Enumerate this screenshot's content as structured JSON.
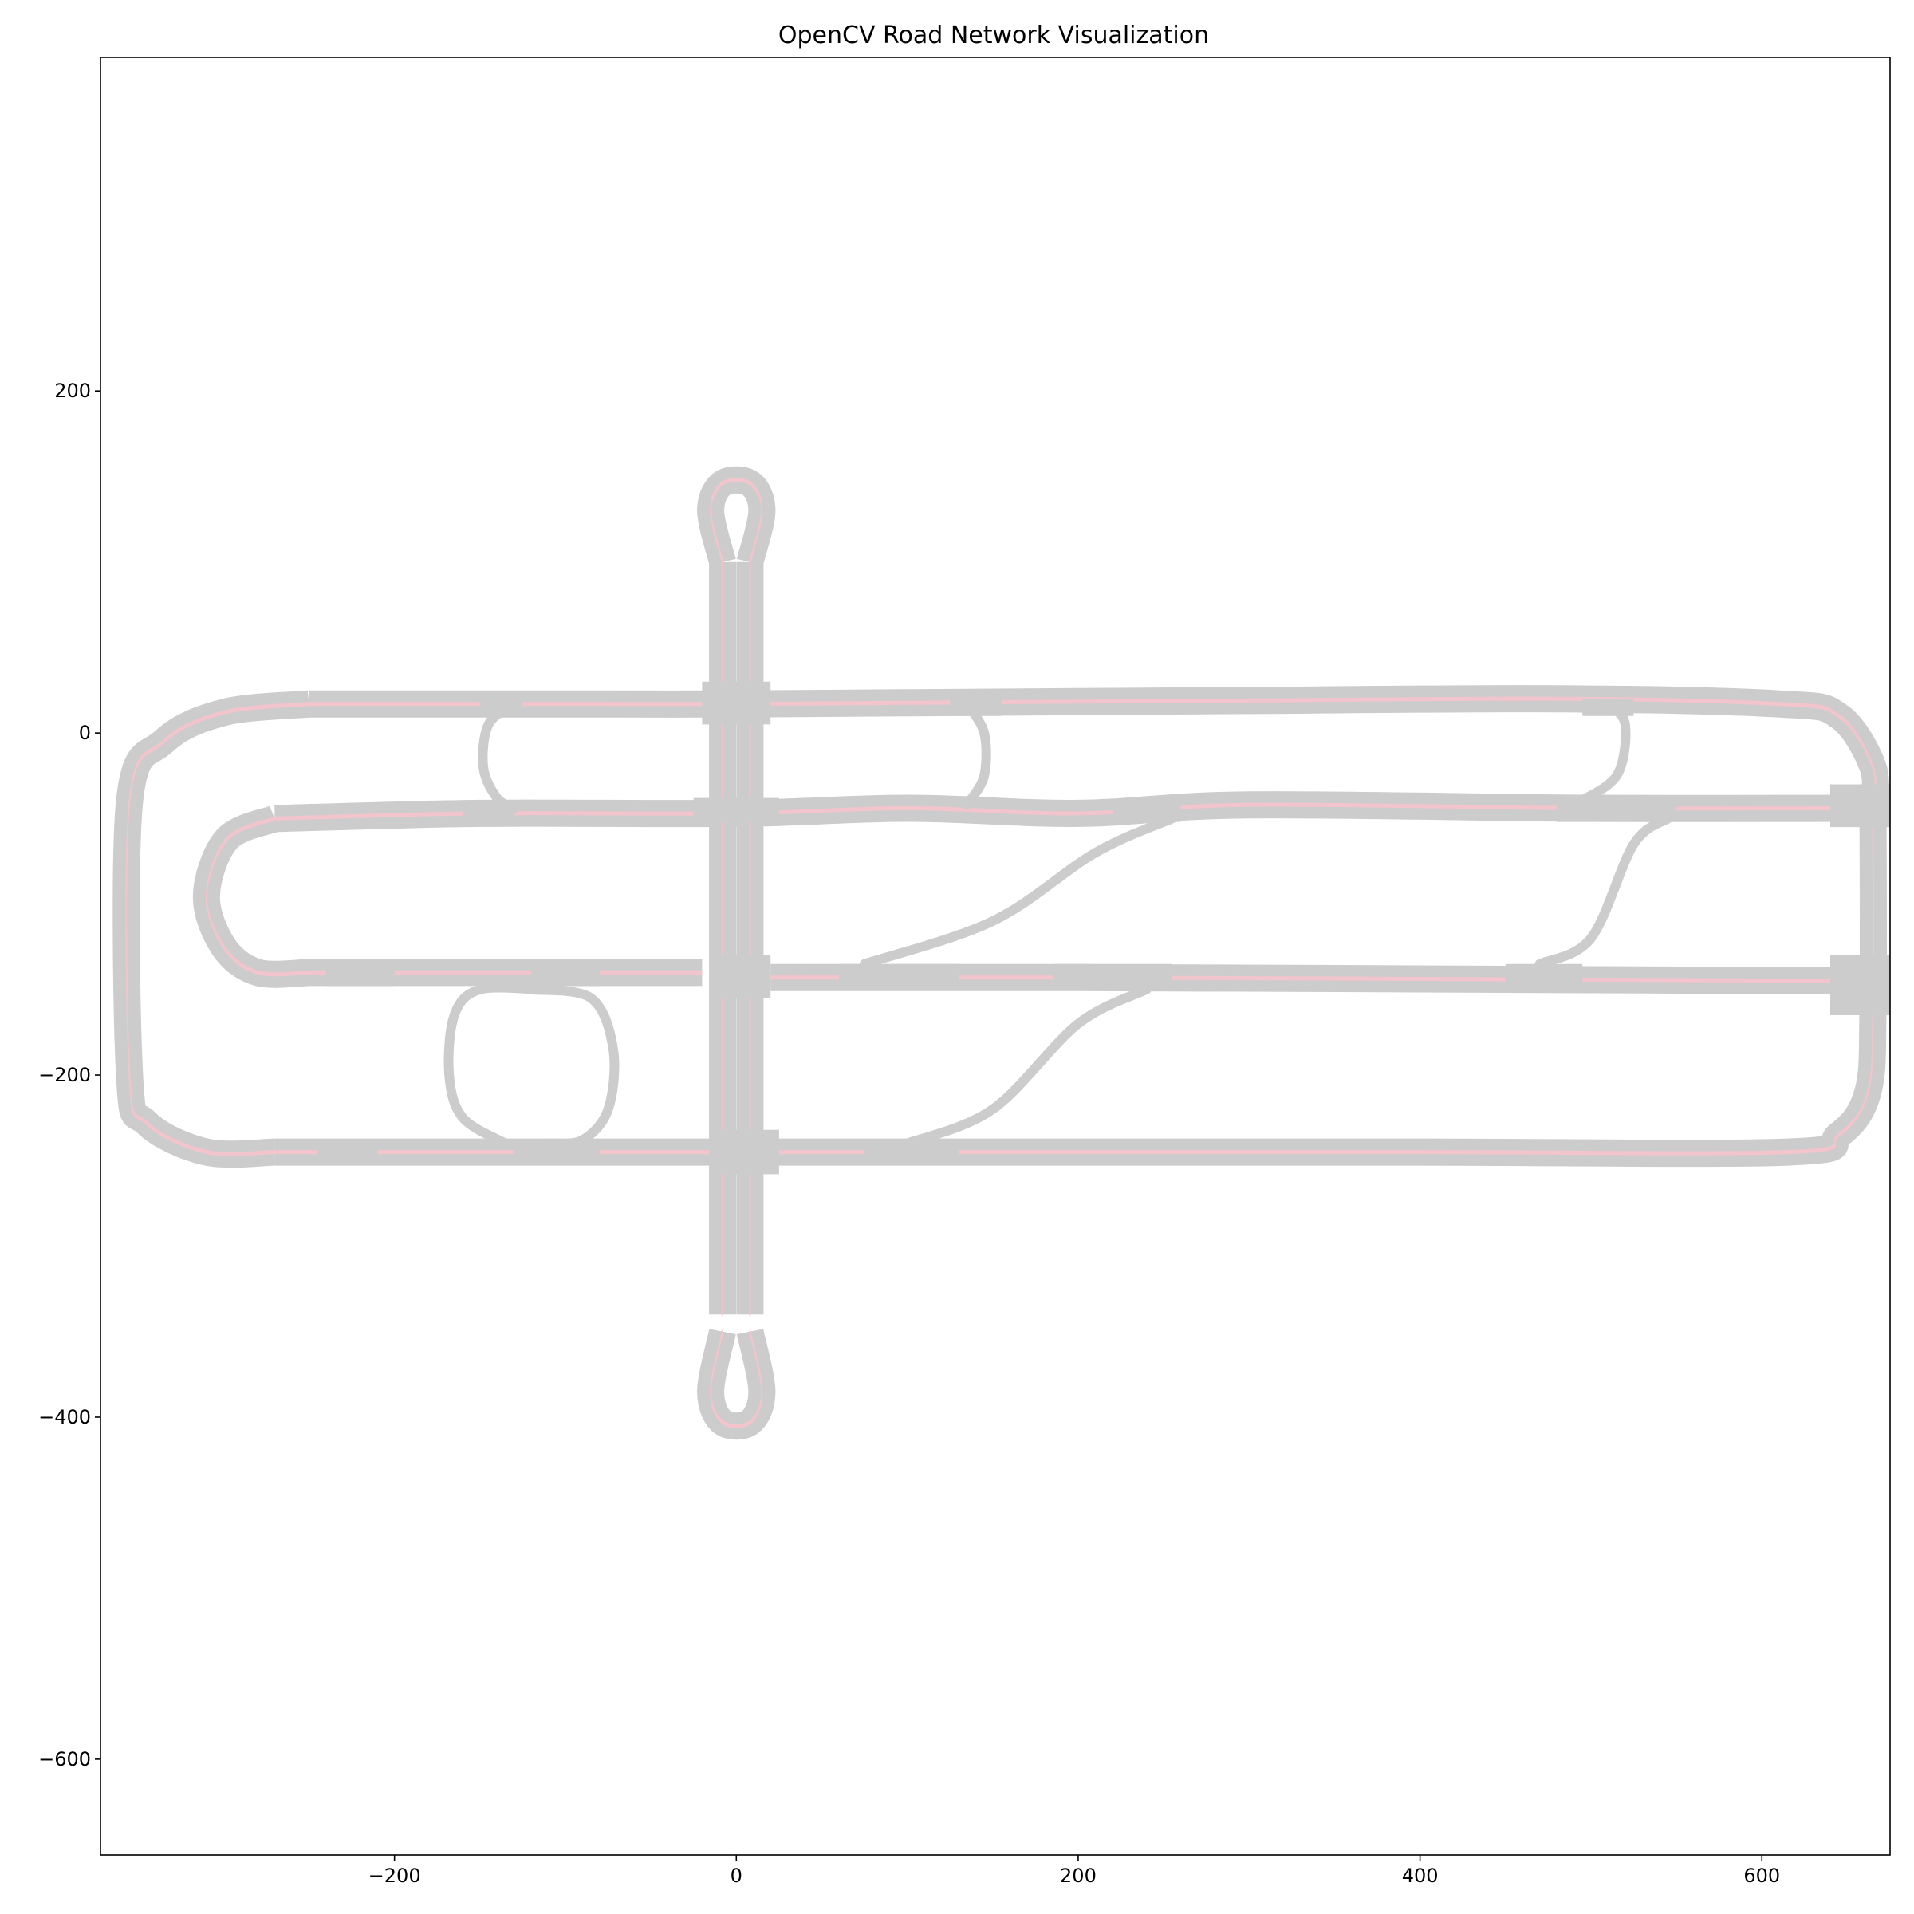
{
  "chart_data": {
    "type": "diagram",
    "title": "OpenCV Road Network Visualization",
    "xlabel": "",
    "ylabel": "",
    "xlim": [
      -372,
      675
    ],
    "ylim": [
      -656,
      395
    ],
    "xticks": [
      -200,
      0,
      200,
      400,
      600
    ],
    "yticks": [
      200,
      0,
      -200,
      -400,
      -600
    ],
    "xtick_labels": [
      "−200",
      "0",
      "200",
      "400",
      "600"
    ],
    "ytick_labels": [
      "200",
      "0",
      "−200",
      "−400",
      "−600"
    ],
    "grid": false,
    "colors": {
      "road": "#cccccc",
      "lane_line": "#f2c4cc",
      "axes": "#000000"
    },
    "roads": [
      {
        "name": "top-road",
        "kind": "main",
        "points": [
          [
            -250,
            17
          ],
          [
            -80,
            17
          ],
          [
            0,
            17
          ],
          [
            150,
            18
          ],
          [
            300,
            19
          ],
          [
            480,
            20
          ],
          [
            610,
            17
          ],
          [
            645,
            10
          ],
          [
            665,
            -20
          ],
          [
            665,
            -45
          ]
        ]
      },
      {
        "name": "top-left-curve",
        "kind": "main",
        "points": [
          [
            -250,
            17
          ],
          [
            -300,
            12
          ],
          [
            -335,
            -5
          ],
          [
            -355,
            -40
          ],
          [
            -355,
            -200
          ],
          [
            -345,
            -228
          ],
          [
            -310,
            -245
          ],
          [
            -270,
            -245
          ]
        ]
      },
      {
        "name": "row-minus47",
        "kind": "main",
        "points": [
          [
            -270,
            -50
          ],
          [
            -150,
            -47
          ],
          [
            0,
            -47
          ],
          [
            100,
            -44
          ],
          [
            200,
            -47
          ],
          [
            300,
            -42
          ],
          [
            500,
            -44
          ],
          [
            665,
            -44
          ]
        ]
      },
      {
        "name": "left-loop-inner",
        "kind": "main",
        "points": [
          [
            -270,
            -50
          ],
          [
            -298,
            -62
          ],
          [
            -310,
            -95
          ],
          [
            -300,
            -125
          ],
          [
            -280,
            -140
          ],
          [
            -250,
            -140
          ]
        ]
      },
      {
        "name": "row-minus140",
        "kind": "main",
        "points": [
          [
            -250,
            -140
          ],
          [
            -100,
            -140
          ],
          [
            -20,
            -140
          ]
        ]
      },
      {
        "name": "row-minus143-right",
        "kind": "main",
        "points": [
          [
            20,
            -143
          ],
          [
            200,
            -143
          ],
          [
            450,
            -144
          ],
          [
            665,
            -145
          ]
        ]
      },
      {
        "name": "bottom-road",
        "kind": "main",
        "points": [
          [
            -270,
            -245
          ],
          [
            -100,
            -245
          ],
          [
            0,
            -245
          ],
          [
            150,
            -245
          ],
          [
            400,
            -245
          ],
          [
            615,
            -245
          ],
          [
            645,
            -235
          ],
          [
            662,
            -210
          ],
          [
            665,
            -160
          ],
          [
            665,
            -45
          ]
        ]
      },
      {
        "name": "vertical-left",
        "kind": "main",
        "points": [
          [
            -8,
            100
          ],
          [
            -8,
            30
          ],
          [
            -8,
            -20
          ],
          [
            -8,
            -80
          ],
          [
            -8,
            -200
          ],
          [
            -8,
            -245
          ],
          [
            -8,
            -340
          ]
        ]
      },
      {
        "name": "vertical-right",
        "kind": "main",
        "points": [
          [
            8,
            100
          ],
          [
            8,
            30
          ],
          [
            8,
            -20
          ],
          [
            8,
            -80
          ],
          [
            8,
            -200
          ],
          [
            8,
            -245
          ],
          [
            8,
            -340
          ]
        ]
      },
      {
        "name": "top-knob",
        "kind": "main",
        "points": [
          [
            -8,
            100
          ],
          [
            -15,
            130
          ],
          [
            -8,
            146
          ],
          [
            8,
            146
          ],
          [
            15,
            130
          ],
          [
            8,
            100
          ]
        ]
      },
      {
        "name": "bottom-knob",
        "kind": "main",
        "points": [
          [
            -8,
            -350
          ],
          [
            -15,
            -385
          ],
          [
            -8,
            -403
          ],
          [
            8,
            -403
          ],
          [
            15,
            -385
          ],
          [
            8,
            -350
          ]
        ]
      },
      {
        "name": "loop-a",
        "kind": "link",
        "points": [
          [
            -130,
            17
          ],
          [
            -145,
            5
          ],
          [
            -148,
            -20
          ],
          [
            -140,
            -38
          ],
          [
            -130,
            -44
          ]
        ]
      },
      {
        "name": "loop-b",
        "kind": "link",
        "points": [
          [
            135,
            17
          ],
          [
            145,
            0
          ],
          [
            145,
            -25
          ],
          [
            135,
            -42
          ]
        ]
      },
      {
        "name": "loop-c",
        "kind": "link",
        "points": [
          [
            510,
            17
          ],
          [
            520,
            5
          ],
          [
            515,
            -25
          ],
          [
            490,
            -42
          ]
        ]
      },
      {
        "name": "loop-d",
        "kind": "link",
        "points": [
          [
            -110,
            -150
          ],
          [
            -115,
            -150
          ],
          [
            -150,
            -150
          ],
          [
            -165,
            -165
          ],
          [
            -168,
            -200
          ],
          [
            -160,
            -225
          ],
          [
            -135,
            -240
          ]
        ]
      },
      {
        "name": "loop-e",
        "kind": "link",
        "points": [
          [
            -120,
            -150
          ],
          [
            -85,
            -155
          ],
          [
            -72,
            -185
          ],
          [
            -75,
            -220
          ],
          [
            -90,
            -238
          ],
          [
            -110,
            -240
          ]
        ]
      },
      {
        "name": "diag-1",
        "kind": "link",
        "points": [
          [
            75,
            -135
          ],
          [
            150,
            -110
          ],
          [
            210,
            -70
          ],
          [
            255,
            -50
          ]
        ]
      },
      {
        "name": "diag-2",
        "kind": "link",
        "points": [
          [
            100,
            -240
          ],
          [
            150,
            -220
          ],
          [
            200,
            -170
          ],
          [
            240,
            -150
          ]
        ]
      },
      {
        "name": "diag-3",
        "kind": "link",
        "points": [
          [
            470,
            -135
          ],
          [
            500,
            -120
          ],
          [
            525,
            -65
          ],
          [
            545,
            -50
          ]
        ]
      }
    ],
    "junctions": [
      {
        "name": "junction-a",
        "points": [
          [
            -150,
            20
          ],
          [
            -125,
            20
          ],
          [
            -125,
            10
          ],
          [
            -150,
            10
          ]
        ]
      },
      {
        "name": "junction-b",
        "points": [
          [
            125,
            20
          ],
          [
            155,
            20
          ],
          [
            155,
            10
          ],
          [
            125,
            10
          ]
        ]
      },
      {
        "name": "junction-c",
        "points": [
          [
            495,
            20
          ],
          [
            525,
            20
          ],
          [
            525,
            10
          ],
          [
            495,
            10
          ]
        ]
      },
      {
        "name": "junction-d",
        "points": [
          [
            -160,
            -42
          ],
          [
            -130,
            -42
          ],
          [
            -130,
            -52
          ],
          [
            -160,
            -52
          ]
        ]
      },
      {
        "name": "junction-e",
        "points": [
          [
            -25,
            -38
          ],
          [
            25,
            -38
          ],
          [
            25,
            -52
          ],
          [
            -25,
            -52
          ]
        ]
      },
      {
        "name": "junction-f",
        "points": [
          [
            220,
            -40
          ],
          [
            260,
            -40
          ],
          [
            260,
            -52
          ],
          [
            220,
            -52
          ]
        ]
      },
      {
        "name": "junction-g",
        "points": [
          [
            480,
            -38
          ],
          [
            550,
            -38
          ],
          [
            550,
            -52
          ],
          [
            480,
            -52
          ]
        ]
      },
      {
        "name": "junction-h",
        "points": [
          [
            640,
            -30
          ],
          [
            675,
            -30
          ],
          [
            675,
            -55
          ],
          [
            640,
            -55
          ]
        ]
      },
      {
        "name": "junction-i",
        "points": [
          [
            -240,
            -135
          ],
          [
            -200,
            -135
          ],
          [
            -200,
            -148
          ],
          [
            -240,
            -148
          ]
        ]
      },
      {
        "name": "junction-j",
        "points": [
          [
            -120,
            -135
          ],
          [
            -80,
            -135
          ],
          [
            -80,
            -148
          ],
          [
            -120,
            -148
          ]
        ]
      },
      {
        "name": "junction-k",
        "points": [
          [
            60,
            -135
          ],
          [
            130,
            -135
          ],
          [
            130,
            -150
          ],
          [
            60,
            -150
          ]
        ]
      },
      {
        "name": "junction-l",
        "points": [
          [
            185,
            -135
          ],
          [
            255,
            -135
          ],
          [
            255,
            -150
          ],
          [
            185,
            -150
          ]
        ]
      },
      {
        "name": "junction-m",
        "points": [
          [
            450,
            -135
          ],
          [
            495,
            -135
          ],
          [
            495,
            -150
          ],
          [
            450,
            -150
          ]
        ]
      },
      {
        "name": "junction-n",
        "points": [
          [
            640,
            -130
          ],
          [
            675,
            -130
          ],
          [
            675,
            -165
          ],
          [
            640,
            -165
          ]
        ]
      },
      {
        "name": "junction-o",
        "points": [
          [
            -245,
            -238
          ],
          [
            -210,
            -238
          ],
          [
            -210,
            -250
          ],
          [
            -245,
            -250
          ]
        ]
      },
      {
        "name": "junction-p",
        "points": [
          [
            -130,
            -238
          ],
          [
            -80,
            -238
          ],
          [
            -80,
            -250
          ],
          [
            -130,
            -250
          ]
        ]
      },
      {
        "name": "junction-q",
        "points": [
          [
            -15,
            -232
          ],
          [
            25,
            -232
          ],
          [
            25,
            -258
          ],
          [
            -15,
            -258
          ]
        ]
      },
      {
        "name": "junction-r",
        "points": [
          [
            75,
            -238
          ],
          [
            130,
            -238
          ],
          [
            130,
            -250
          ],
          [
            75,
            -250
          ]
        ]
      },
      {
        "name": "junction-s",
        "points": [
          [
            -20,
            30
          ],
          [
            20,
            30
          ],
          [
            20,
            5
          ],
          [
            -20,
            5
          ]
        ]
      },
      {
        "name": "junction-t",
        "points": [
          [
            -15,
            -130
          ],
          [
            20,
            -130
          ],
          [
            20,
            -155
          ],
          [
            -15,
            -155
          ]
        ]
      }
    ]
  }
}
